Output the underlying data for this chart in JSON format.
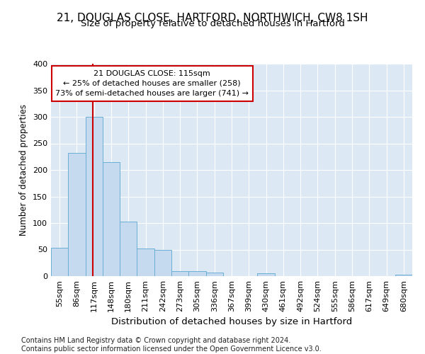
{
  "title_line1": "21, DOUGLAS CLOSE, HARTFORD, NORTHWICH, CW8 1SH",
  "title_line2": "Size of property relative to detached houses in Hartford",
  "xlabel": "Distribution of detached houses by size in Hartford",
  "ylabel": "Number of detached properties",
  "footnote": "Contains HM Land Registry data © Crown copyright and database right 2024.\nContains public sector information licensed under the Open Government Licence v3.0.",
  "bin_labels": [
    "55sqm",
    "86sqm",
    "117sqm",
    "148sqm",
    "180sqm",
    "211sqm",
    "242sqm",
    "273sqm",
    "305sqm",
    "336sqm",
    "367sqm",
    "399sqm",
    "430sqm",
    "461sqm",
    "492sqm",
    "524sqm",
    "555sqm",
    "586sqm",
    "617sqm",
    "649sqm",
    "680sqm"
  ],
  "bar_values": [
    53,
    232,
    300,
    215,
    103,
    52,
    49,
    10,
    10,
    7,
    0,
    0,
    5,
    0,
    0,
    0,
    0,
    0,
    0,
    0,
    3
  ],
  "bar_color": "#c5d9ef",
  "bar_edge_color": "#6baed6",
  "vline_color": "#cc0000",
  "annotation_box_edge": "#cc0000",
  "annotation_title": "21 DOUGLAS CLOSE: 115sqm",
  "annotation_line1": "← 25% of detached houses are smaller (258)",
  "annotation_line2": "73% of semi-detached houses are larger (741) →",
  "ylim": [
    0,
    400
  ],
  "yticks": [
    0,
    50,
    100,
    150,
    200,
    250,
    300,
    350,
    400
  ],
  "background_color": "#dce9f5",
  "grid_color": "#ffffff",
  "title1_fontsize": 11,
  "title2_fontsize": 9.5,
  "xlabel_fontsize": 9.5,
  "ylabel_fontsize": 8.5,
  "tick_fontsize": 8,
  "annotation_fontsize": 8,
  "footnote_fontsize": 7
}
